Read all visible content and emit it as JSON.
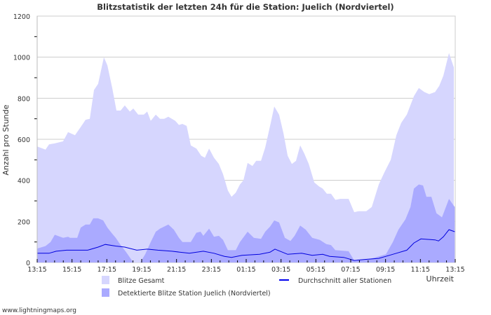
{
  "chart_data": {
    "type": "area",
    "title": "Blitzstatistik der letzten 24h für die Station: Juelich (Nordviertel)",
    "xlabel": "Uhrzeit",
    "ylabel": "Anzahl pro Stunde",
    "x_unit": "hours since 13:15",
    "xlim": [
      0,
      24
    ],
    "ylim": [
      0,
      1200
    ],
    "yticks": [
      0,
      200,
      400,
      600,
      800,
      1000,
      1200
    ],
    "xtick_labels": [
      "13:15",
      "15:15",
      "17:15",
      "19:15",
      "21:15",
      "23:15",
      "01:15",
      "03:15",
      "05:15",
      "07:15",
      "09:15",
      "11:15",
      "13:15"
    ],
    "grid": true,
    "legend_position": "bottom",
    "series": [
      {
        "name": "Blitze Gesamt",
        "kind": "area",
        "color": "#d6d6fe",
        "points": [
          [
            0,
            565
          ],
          [
            0.48,
            550
          ],
          [
            0.68,
            575
          ],
          [
            1.0,
            580
          ],
          [
            1.49,
            590
          ],
          [
            1.77,
            635
          ],
          [
            2.17,
            620
          ],
          [
            2.5,
            660
          ],
          [
            2.78,
            695
          ],
          [
            3.02,
            700
          ],
          [
            3.26,
            840
          ],
          [
            3.5,
            870
          ],
          [
            3.83,
            1000
          ],
          [
            4.03,
            960
          ],
          [
            4.31,
            850
          ],
          [
            4.55,
            740
          ],
          [
            4.79,
            740
          ],
          [
            5.03,
            765
          ],
          [
            5.32,
            735
          ],
          [
            5.52,
            750
          ],
          [
            5.8,
            720
          ],
          [
            6.12,
            720
          ],
          [
            6.32,
            735
          ],
          [
            6.52,
            690
          ],
          [
            6.81,
            720
          ],
          [
            7.05,
            700
          ],
          [
            7.29,
            700
          ],
          [
            7.53,
            710
          ],
          [
            7.93,
            690
          ],
          [
            8.14,
            670
          ],
          [
            8.34,
            675
          ],
          [
            8.58,
            665
          ],
          [
            8.82,
            570
          ],
          [
            9.14,
            555
          ],
          [
            9.42,
            520
          ],
          [
            9.63,
            510
          ],
          [
            9.87,
            555
          ],
          [
            10.15,
            510
          ],
          [
            10.43,
            480
          ],
          [
            10.67,
            430
          ],
          [
            10.95,
            350
          ],
          [
            11.16,
            320
          ],
          [
            11.4,
            340
          ],
          [
            11.64,
            380
          ],
          [
            11.84,
            400
          ],
          [
            12.08,
            485
          ],
          [
            12.36,
            470
          ],
          [
            12.57,
            495
          ],
          [
            12.85,
            495
          ],
          [
            13.09,
            560
          ],
          [
            13.41,
            680
          ],
          [
            13.61,
            760
          ],
          [
            13.89,
            720
          ],
          [
            14.14,
            630
          ],
          [
            14.38,
            520
          ],
          [
            14.62,
            480
          ],
          [
            14.86,
            495
          ],
          [
            15.1,
            570
          ],
          [
            15.34,
            530
          ],
          [
            15.59,
            480
          ],
          [
            15.91,
            390
          ],
          [
            16.19,
            370
          ],
          [
            16.39,
            360
          ],
          [
            16.63,
            335
          ],
          [
            16.87,
            335
          ],
          [
            17.12,
            305
          ],
          [
            17.4,
            310
          ],
          [
            17.88,
            310
          ],
          [
            18.2,
            245
          ],
          [
            18.45,
            250
          ],
          [
            18.89,
            250
          ],
          [
            19.21,
            270
          ],
          [
            19.61,
            380
          ],
          [
            19.94,
            440
          ],
          [
            20.3,
            500
          ],
          [
            20.62,
            620
          ],
          [
            20.9,
            680
          ],
          [
            21.22,
            720
          ],
          [
            21.63,
            810
          ],
          [
            21.91,
            850
          ],
          [
            22.23,
            830
          ],
          [
            22.51,
            820
          ],
          [
            22.84,
            830
          ],
          [
            23.08,
            860
          ],
          [
            23.32,
            910
          ],
          [
            23.64,
            1020
          ],
          [
            23.92,
            950
          ]
        ]
      },
      {
        "name": "Detektierte Blitze Station Juelich (Nordviertel)",
        "kind": "area",
        "color": "#aaaaff",
        "points": [
          [
            0,
            68
          ],
          [
            0.48,
            80
          ],
          [
            0.77,
            100
          ],
          [
            1.01,
            135
          ],
          [
            1.49,
            120
          ],
          [
            1.77,
            125
          ],
          [
            1.89,
            120
          ],
          [
            2.3,
            120
          ],
          [
            2.5,
            170
          ],
          [
            2.78,
            185
          ],
          [
            3.02,
            185
          ],
          [
            3.22,
            215
          ],
          [
            3.5,
            215
          ],
          [
            3.79,
            205
          ],
          [
            4.03,
            170
          ],
          [
            4.31,
            140
          ],
          [
            4.51,
            120
          ],
          [
            4.79,
            85
          ],
          [
            5.11,
            50
          ],
          [
            5.52,
            0
          ],
          [
            5.92,
            0
          ],
          [
            6.2,
            40
          ],
          [
            6.52,
            100
          ],
          [
            6.81,
            150
          ],
          [
            7.05,
            165
          ],
          [
            7.53,
            185
          ],
          [
            7.85,
            160
          ],
          [
            8.14,
            120
          ],
          [
            8.34,
            100
          ],
          [
            8.82,
            100
          ],
          [
            9.14,
            145
          ],
          [
            9.38,
            150
          ],
          [
            9.54,
            130
          ],
          [
            9.87,
            165
          ],
          [
            10.15,
            125
          ],
          [
            10.43,
            130
          ],
          [
            10.67,
            110
          ],
          [
            10.95,
            60
          ],
          [
            11.4,
            60
          ],
          [
            11.64,
            100
          ],
          [
            12.08,
            150
          ],
          [
            12.44,
            120
          ],
          [
            12.85,
            115
          ],
          [
            13.09,
            150
          ],
          [
            13.37,
            175
          ],
          [
            13.61,
            205
          ],
          [
            13.89,
            195
          ],
          [
            14.22,
            120
          ],
          [
            14.54,
            105
          ],
          [
            14.78,
            130
          ],
          [
            15.1,
            180
          ],
          [
            15.42,
            160
          ],
          [
            15.79,
            120
          ],
          [
            16.23,
            110
          ],
          [
            16.59,
            90
          ],
          [
            16.87,
            85
          ],
          [
            17.12,
            60
          ],
          [
            17.88,
            55
          ],
          [
            18.2,
            10
          ],
          [
            18.81,
            15
          ],
          [
            19.21,
            20
          ],
          [
            19.61,
            30
          ],
          [
            20.02,
            40
          ],
          [
            20.42,
            100
          ],
          [
            20.74,
            160
          ],
          [
            21.14,
            210
          ],
          [
            21.43,
            270
          ],
          [
            21.63,
            360
          ],
          [
            21.91,
            380
          ],
          [
            22.15,
            375
          ],
          [
            22.35,
            320
          ],
          [
            22.63,
            320
          ],
          [
            22.92,
            240
          ],
          [
            23.24,
            220
          ],
          [
            23.64,
            310
          ],
          [
            23.97,
            270
          ]
        ]
      },
      {
        "name": "Durchschnitt aller Stationen",
        "kind": "line",
        "color": "#0000dd",
        "points": [
          [
            0,
            45
          ],
          [
            0.68,
            45
          ],
          [
            1.09,
            55
          ],
          [
            1.69,
            60
          ],
          [
            2.9,
            60
          ],
          [
            3.5,
            75
          ],
          [
            3.91,
            88
          ],
          [
            4.51,
            80
          ],
          [
            5.03,
            75
          ],
          [
            5.72,
            60
          ],
          [
            6.32,
            65
          ],
          [
            6.93,
            60
          ],
          [
            7.73,
            55
          ],
          [
            8.74,
            45
          ],
          [
            9.54,
            55
          ],
          [
            10.15,
            45
          ],
          [
            10.75,
            30
          ],
          [
            11.16,
            25
          ],
          [
            11.76,
            35
          ],
          [
            12.77,
            40
          ],
          [
            13.37,
            50
          ],
          [
            13.65,
            65
          ],
          [
            14.38,
            40
          ],
          [
            15.18,
            45
          ],
          [
            15.79,
            35
          ],
          [
            16.39,
            40
          ],
          [
            16.79,
            30
          ],
          [
            17.6,
            25
          ],
          [
            18.2,
            10
          ],
          [
            18.81,
            15
          ],
          [
            19.61,
            20
          ],
          [
            20.02,
            30
          ],
          [
            20.62,
            45
          ],
          [
            21.22,
            60
          ],
          [
            21.63,
            95
          ],
          [
            22.03,
            115
          ],
          [
            22.84,
            110
          ],
          [
            23.04,
            105
          ],
          [
            23.32,
            125
          ],
          [
            23.64,
            160
          ],
          [
            23.97,
            150
          ]
        ]
      }
    ]
  },
  "footer": "www.lightningmaps.org"
}
